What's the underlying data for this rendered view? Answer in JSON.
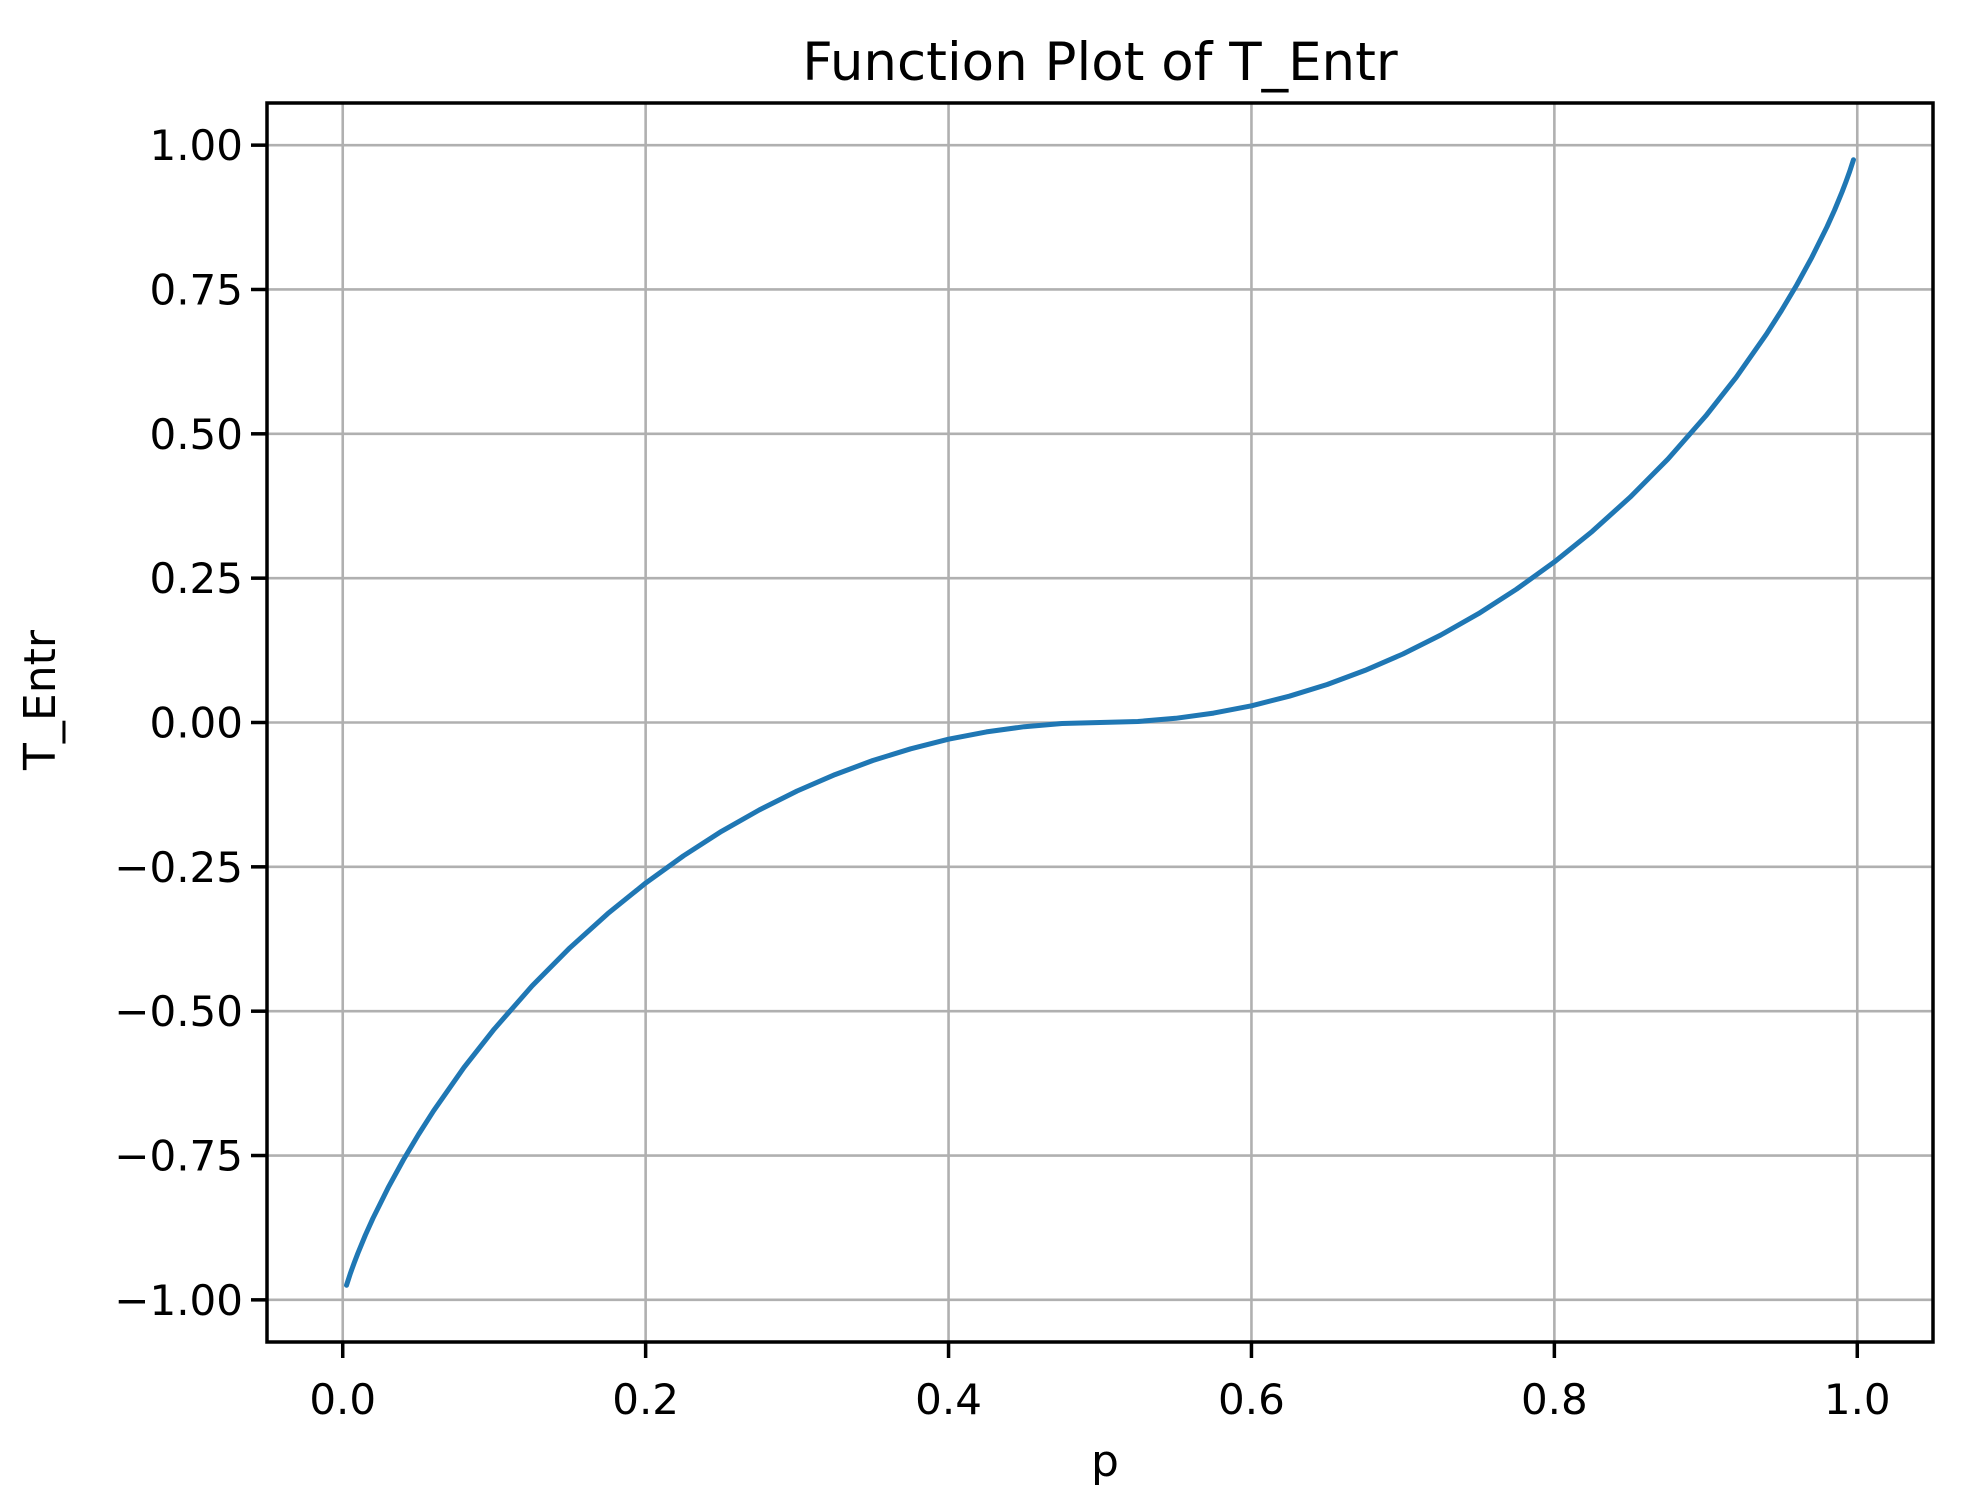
{
  "chart_data": {
    "type": "line",
    "title": "Function Plot of T_Entr",
    "xlabel": "p",
    "ylabel": "T_Entr",
    "xlim": [
      -0.05,
      1.05
    ],
    "ylim": [
      -1.073,
      1.073
    ],
    "x_ticks": [
      0.0,
      0.2,
      0.4,
      0.6,
      0.8,
      1.0
    ],
    "x_tick_labels": [
      "0.0",
      "0.2",
      "0.4",
      "0.6",
      "0.8",
      "1.0"
    ],
    "y_ticks": [
      1.0,
      0.75,
      0.5,
      0.25,
      0.0,
      -0.25,
      -0.5,
      -0.75,
      -1.0
    ],
    "y_tick_labels": [
      "1.00",
      "0.75",
      "0.50",
      "0.25",
      "0.00",
      "−0.25",
      "−0.50",
      "−0.75",
      "−1.00"
    ],
    "grid": true,
    "legend": false,
    "colors": {
      "line": "#1f77b4",
      "grid": "#b0b0b0",
      "spine": "#000000",
      "text": "#000000",
      "background": "#ffffff"
    },
    "series": [
      {
        "name": "T_Entr",
        "x": [
          0.0025,
          0.005,
          0.0075,
          0.01,
          0.015,
          0.02,
          0.03,
          0.04,
          0.05,
          0.06,
          0.08,
          0.1,
          0.125,
          0.15,
          0.175,
          0.2,
          0.225,
          0.25,
          0.275,
          0.3,
          0.325,
          0.35,
          0.375,
          0.4,
          0.425,
          0.45,
          0.475,
          0.5,
          0.525,
          0.55,
          0.575,
          0.6,
          0.625,
          0.65,
          0.675,
          0.7,
          0.725,
          0.75,
          0.775,
          0.8,
          0.825,
          0.85,
          0.875,
          0.9,
          0.92,
          0.94,
          0.95,
          0.96,
          0.97,
          0.98,
          0.985,
          0.99,
          0.9925,
          0.995,
          0.9975
        ],
        "y": [
          -0.9748,
          -0.9546,
          -0.9363,
          -0.9192,
          -0.8876,
          -0.8586,
          -0.8056,
          -0.7577,
          -0.7136,
          -0.6726,
          -0.5978,
          -0.531,
          -0.4564,
          -0.3902,
          -0.331,
          -0.2781,
          -0.2308,
          -0.1887,
          -0.1515,
          -0.1187,
          -0.0903,
          -0.0659,
          -0.0456,
          -0.029,
          -0.0163,
          -0.0072,
          -0.0018,
          0.0,
          0.0018,
          0.0072,
          0.0163,
          0.029,
          0.0456,
          0.0659,
          0.0903,
          0.1187,
          0.1515,
          0.1887,
          0.2308,
          0.2781,
          0.331,
          0.3902,
          0.4564,
          0.531,
          0.5978,
          0.6726,
          0.7136,
          0.7577,
          0.8056,
          0.8586,
          0.8876,
          0.9192,
          0.9363,
          0.9546,
          0.9748
        ]
      }
    ]
  }
}
